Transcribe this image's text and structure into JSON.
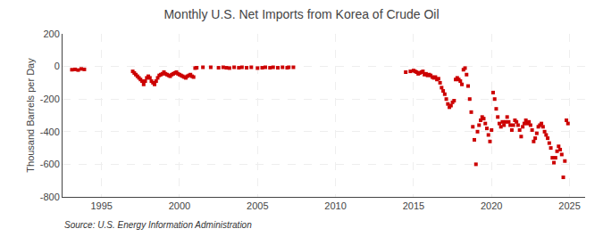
{
  "chart_data": {
    "type": "scatter",
    "title": "Monthly U.S. Net Imports from Korea of Crude Oil",
    "ylabel": "Thousand Barrels per Day",
    "annotations": [
      "Source: U.S. Energy Information Administration"
    ],
    "color": "#cc0000",
    "marker": "square",
    "grid": true,
    "xlim": [
      1992.5,
      2026.0
    ],
    "xticks": [
      1995,
      2000,
      2005,
      2010,
      2015,
      2020,
      2025
    ],
    "ylim": [
      -800,
      200
    ],
    "yticks": [
      -800,
      -600,
      -400,
      -200,
      0,
      200
    ],
    "x": [
      1993.1,
      1993.3,
      1993.5,
      1993.7,
      1993.9,
      1997.0,
      1997.1,
      1997.2,
      1997.3,
      1997.4,
      1997.5,
      1997.6,
      1997.7,
      1997.8,
      1997.9,
      1998.0,
      1998.1,
      1998.2,
      1998.3,
      1998.4,
      1998.5,
      1998.6,
      1998.7,
      1998.8,
      1998.9,
      1999.0,
      1999.1,
      1999.2,
      1999.3,
      1999.4,
      1999.5,
      1999.6,
      1999.7,
      1999.8,
      1999.9,
      2000.0,
      2000.1,
      2000.2,
      2000.3,
      2000.4,
      2000.5,
      2000.6,
      2000.7,
      2000.8,
      2000.9,
      2001.0,
      2001.1,
      2001.5,
      2002.0,
      2002.5,
      2002.8,
      2003.0,
      2003.2,
      2003.5,
      2003.8,
      2004.0,
      2004.3,
      2004.6,
      2005.0,
      2005.3,
      2005.5,
      2005.8,
      2006.0,
      2006.3,
      2006.6,
      2006.9,
      2007.0,
      2007.3,
      2014.5,
      2014.8,
      2015.0,
      2015.1,
      2015.2,
      2015.3,
      2015.4,
      2015.5,
      2015.6,
      2015.7,
      2015.8,
      2015.9,
      2016.0,
      2016.1,
      2016.2,
      2016.3,
      2016.4,
      2016.5,
      2016.6,
      2016.7,
      2016.8,
      2016.9,
      2017.0,
      2017.1,
      2017.2,
      2017.3,
      2017.4,
      2017.5,
      2017.6,
      2017.7,
      2017.8,
      2017.9,
      2018.0,
      2018.1,
      2018.2,
      2018.3,
      2018.4,
      2018.5,
      2018.6,
      2018.7,
      2018.8,
      2018.9,
      2019.0,
      2019.1,
      2019.2,
      2019.3,
      2019.4,
      2019.5,
      2019.6,
      2019.7,
      2019.8,
      2019.9,
      2020.0,
      2020.1,
      2020.2,
      2020.3,
      2020.4,
      2020.5,
      2020.6,
      2020.7,
      2020.8,
      2020.9,
      2021.0,
      2021.1,
      2021.2,
      2021.3,
      2021.4,
      2021.5,
      2021.6,
      2021.7,
      2021.8,
      2021.9,
      2022.0,
      2022.1,
      2022.2,
      2022.3,
      2022.4,
      2022.5,
      2022.6,
      2022.7,
      2022.8,
      2022.9,
      2023.0,
      2023.1,
      2023.2,
      2023.3,
      2023.4,
      2023.5,
      2023.6,
      2023.7,
      2023.8,
      2023.9,
      2024.0,
      2024.1,
      2024.2,
      2024.3,
      2024.4,
      2024.5,
      2024.6,
      2024.7,
      2024.8,
      2024.9
    ],
    "values": [
      -20,
      -18,
      -22,
      -15,
      -18,
      -30,
      -40,
      -50,
      -60,
      -70,
      -80,
      -90,
      -110,
      -90,
      -70,
      -60,
      -70,
      -90,
      -100,
      -110,
      -90,
      -70,
      -55,
      -50,
      -45,
      -35,
      -45,
      -50,
      -55,
      -60,
      -50,
      -45,
      -40,
      -35,
      -45,
      -50,
      -55,
      -60,
      -65,
      -70,
      -60,
      -55,
      -50,
      -60,
      -65,
      -10,
      -8,
      -5,
      -5,
      -8,
      -5,
      -8,
      -10,
      -5,
      -8,
      -5,
      -8,
      -5,
      -10,
      -8,
      -5,
      -8,
      -5,
      -8,
      -5,
      -8,
      -5,
      -5,
      -35,
      -30,
      -25,
      -30,
      -35,
      -45,
      -40,
      -35,
      -30,
      -50,
      -45,
      -55,
      -50,
      -55,
      -65,
      -70,
      -65,
      -80,
      -75,
      -100,
      -130,
      -150,
      -170,
      -200,
      -230,
      -250,
      -240,
      -220,
      -210,
      -80,
      -70,
      -80,
      -90,
      -110,
      -20,
      -10,
      -50,
      -120,
      -200,
      -280,
      -370,
      -450,
      -600,
      -400,
      -360,
      -330,
      -310,
      -320,
      -350,
      -380,
      -420,
      -460,
      -390,
      -160,
      -200,
      -260,
      -310,
      -350,
      -370,
      -340,
      -360,
      -340,
      -310,
      -340,
      -360,
      -390,
      -360,
      -330,
      -340,
      -360,
      -390,
      -430,
      -370,
      -350,
      -330,
      -350,
      -340,
      -360,
      -390,
      -460,
      -440,
      -410,
      -370,
      -360,
      -350,
      -370,
      -400,
      -420,
      -440,
      -470,
      -500,
      -560,
      -590,
      -560,
      -520,
      -490,
      -510,
      -540,
      -680,
      -580,
      -330,
      -350
    ]
  }
}
